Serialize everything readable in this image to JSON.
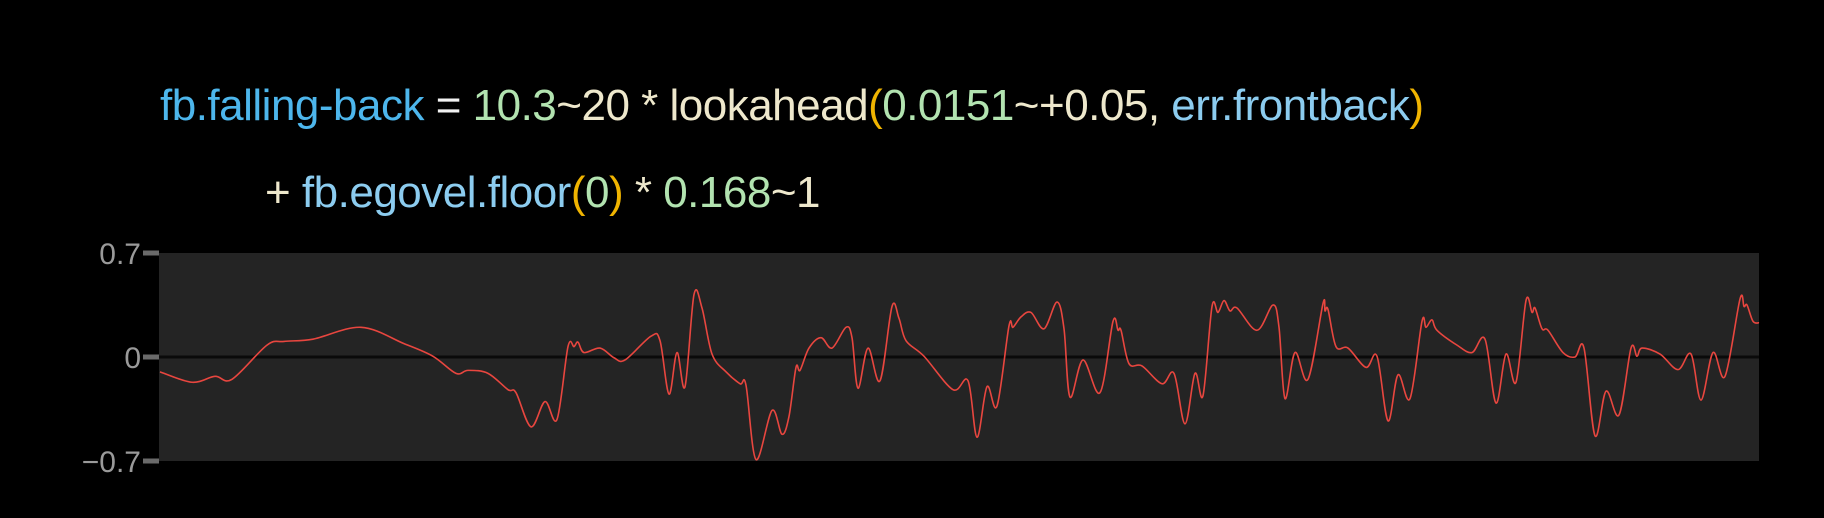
{
  "formula": {
    "line1": [
      {
        "text": "fb.falling-back",
        "kind": "ident-main"
      },
      {
        "text": " = ",
        "kind": "eq"
      },
      {
        "text": "10.3",
        "kind": "num"
      },
      {
        "text": "~20 * lookahead",
        "kind": "op"
      },
      {
        "text": "(",
        "kind": "paren"
      },
      {
        "text": "0.0151",
        "kind": "num"
      },
      {
        "text": "~+0.05, ",
        "kind": "op"
      },
      {
        "text": "err.frontback",
        "kind": "ident"
      },
      {
        "text": ")",
        "kind": "paren"
      }
    ],
    "line2": [
      {
        "text": "+ ",
        "kind": "op"
      },
      {
        "text": "fb.egovel.floor",
        "kind": "ident"
      },
      {
        "text": "(",
        "kind": "paren"
      },
      {
        "text": "0",
        "kind": "num"
      },
      {
        "text": ")",
        "kind": "paren"
      },
      {
        "text": " * ",
        "kind": "op"
      },
      {
        "text": "0.168",
        "kind": "num"
      },
      {
        "text": "~1",
        "kind": "op"
      }
    ]
  },
  "colors": {
    "background": "#000000",
    "plot_background": "#242424",
    "series": "#e8463f",
    "zero_line": "#0a0a0a",
    "tick_label": "#9a9a9a",
    "tick_mark": "#6a6a6a"
  },
  "chart_data": {
    "type": "line",
    "title": "",
    "xlabel": "",
    "ylabel": "",
    "ylim": [
      -0.7,
      0.7
    ],
    "xlim": [
      0,
      1600
    ],
    "yticks": [
      0.7,
      0,
      -0.7
    ],
    "ytick_labels": [
      "0.7",
      "0",
      "−0.7"
    ],
    "grid": false,
    "zero_line": true,
    "series": [
      {
        "points": [
          [
            1,
            -0.1
          ],
          [
            33,
            -0.17
          ],
          [
            56,
            -0.13
          ],
          [
            73,
            -0.15
          ],
          [
            108,
            0.08
          ],
          [
            125,
            0.105
          ],
          [
            154,
            0.12
          ],
          [
            202,
            0.2
          ],
          [
            245,
            0.09
          ],
          [
            274,
            0.005
          ],
          [
            297,
            -0.11
          ],
          [
            309,
            -0.09
          ],
          [
            329,
            -0.11
          ],
          [
            349,
            -0.22
          ],
          [
            357,
            -0.24
          ],
          [
            372,
            -0.47
          ],
          [
            386,
            -0.3
          ],
          [
            398,
            -0.42
          ],
          [
            409,
            0.07
          ],
          [
            415,
            0.07
          ],
          [
            419,
            0.1
          ],
          [
            425,
            0.03
          ],
          [
            441,
            0.06
          ],
          [
            455,
            -0.005
          ],
          [
            466,
            -0.02
          ],
          [
            492,
            0.14
          ],
          [
            501,
            0.11
          ],
          [
            510,
            -0.25
          ],
          [
            518,
            0.03
          ],
          [
            526,
            -0.2
          ],
          [
            535,
            0.42
          ],
          [
            543,
            0.33
          ],
          [
            553,
            0.02
          ],
          [
            567,
            -0.1
          ],
          [
            581,
            -0.18
          ],
          [
            587,
            -0.19
          ],
          [
            597,
            -0.69
          ],
          [
            613,
            -0.36
          ],
          [
            623,
            -0.52
          ],
          [
            630,
            -0.4
          ],
          [
            637,
            -0.07
          ],
          [
            641,
            -0.09
          ],
          [
            650,
            0.06
          ],
          [
            662,
            0.13
          ],
          [
            673,
            0.06
          ],
          [
            687,
            0.2
          ],
          [
            693,
            0.13
          ],
          [
            699,
            -0.21
          ],
          [
            709,
            0.06
          ],
          [
            721,
            -0.16
          ],
          [
            733,
            0.34
          ],
          [
            740,
            0.26
          ],
          [
            747,
            0.11
          ],
          [
            765,
            0.005
          ],
          [
            794,
            -0.22
          ],
          [
            809,
            -0.16
          ],
          [
            818,
            -0.54
          ],
          [
            828,
            -0.2
          ],
          [
            838,
            -0.33
          ],
          [
            850,
            0.21
          ],
          [
            854,
            0.2
          ],
          [
            862,
            0.27
          ],
          [
            872,
            0.3
          ],
          [
            885,
            0.19
          ],
          [
            898,
            0.37
          ],
          [
            905,
            0.19
          ],
          [
            911,
            -0.27
          ],
          [
            924,
            -0.02
          ],
          [
            941,
            -0.24
          ],
          [
            954,
            0.24
          ],
          [
            959,
            0.18
          ],
          [
            962,
            0.18
          ],
          [
            970,
            -0.045
          ],
          [
            983,
            -0.06
          ],
          [
            1003,
            -0.18
          ],
          [
            1015,
            -0.11
          ],
          [
            1026,
            -0.45
          ],
          [
            1036,
            -0.11
          ],
          [
            1044,
            -0.26
          ],
          [
            1053,
            0.34
          ],
          [
            1059,
            0.3
          ],
          [
            1065,
            0.38
          ],
          [
            1071,
            0.31
          ],
          [
            1078,
            0.33
          ],
          [
            1098,
            0.18
          ],
          [
            1114,
            0.35
          ],
          [
            1120,
            0.2
          ],
          [
            1126,
            -0.28
          ],
          [
            1136,
            0.03
          ],
          [
            1149,
            -0.15
          ],
          [
            1164,
            0.36
          ],
          [
            1166,
            0.31
          ],
          [
            1169,
            0.32
          ],
          [
            1177,
            0.07
          ],
          [
            1189,
            0.06
          ],
          [
            1207,
            -0.07
          ],
          [
            1218,
            0.005
          ],
          [
            1229,
            -0.43
          ],
          [
            1239,
            -0.12
          ],
          [
            1251,
            -0.28
          ],
          [
            1263,
            0.24
          ],
          [
            1267,
            0.2
          ],
          [
            1273,
            0.25
          ],
          [
            1278,
            0.18
          ],
          [
            1298,
            0.08
          ],
          [
            1313,
            0.03
          ],
          [
            1326,
            0.12
          ],
          [
            1337,
            -0.31
          ],
          [
            1347,
            0.02
          ],
          [
            1357,
            -0.17
          ],
          [
            1367,
            0.38
          ],
          [
            1373,
            0.3
          ],
          [
            1376,
            0.33
          ],
          [
            1383,
            0.19
          ],
          [
            1389,
            0.18
          ],
          [
            1404,
            0.03
          ],
          [
            1416,
            0.0
          ],
          [
            1425,
            0.06
          ],
          [
            1436,
            -0.53
          ],
          [
            1447,
            -0.23
          ],
          [
            1460,
            -0.39
          ],
          [
            1472,
            0.06
          ],
          [
            1478,
            0.005
          ],
          [
            1483,
            0.06
          ],
          [
            1501,
            0.02
          ],
          [
            1519,
            -0.085
          ],
          [
            1532,
            0.02
          ],
          [
            1542,
            -0.29
          ],
          [
            1554,
            0.03
          ],
          [
            1566,
            -0.13
          ],
          [
            1581,
            0.39
          ],
          [
            1585,
            0.34
          ],
          [
            1588,
            0.35
          ],
          [
            1594,
            0.24
          ],
          [
            1600,
            0.23
          ]
        ]
      }
    ]
  }
}
